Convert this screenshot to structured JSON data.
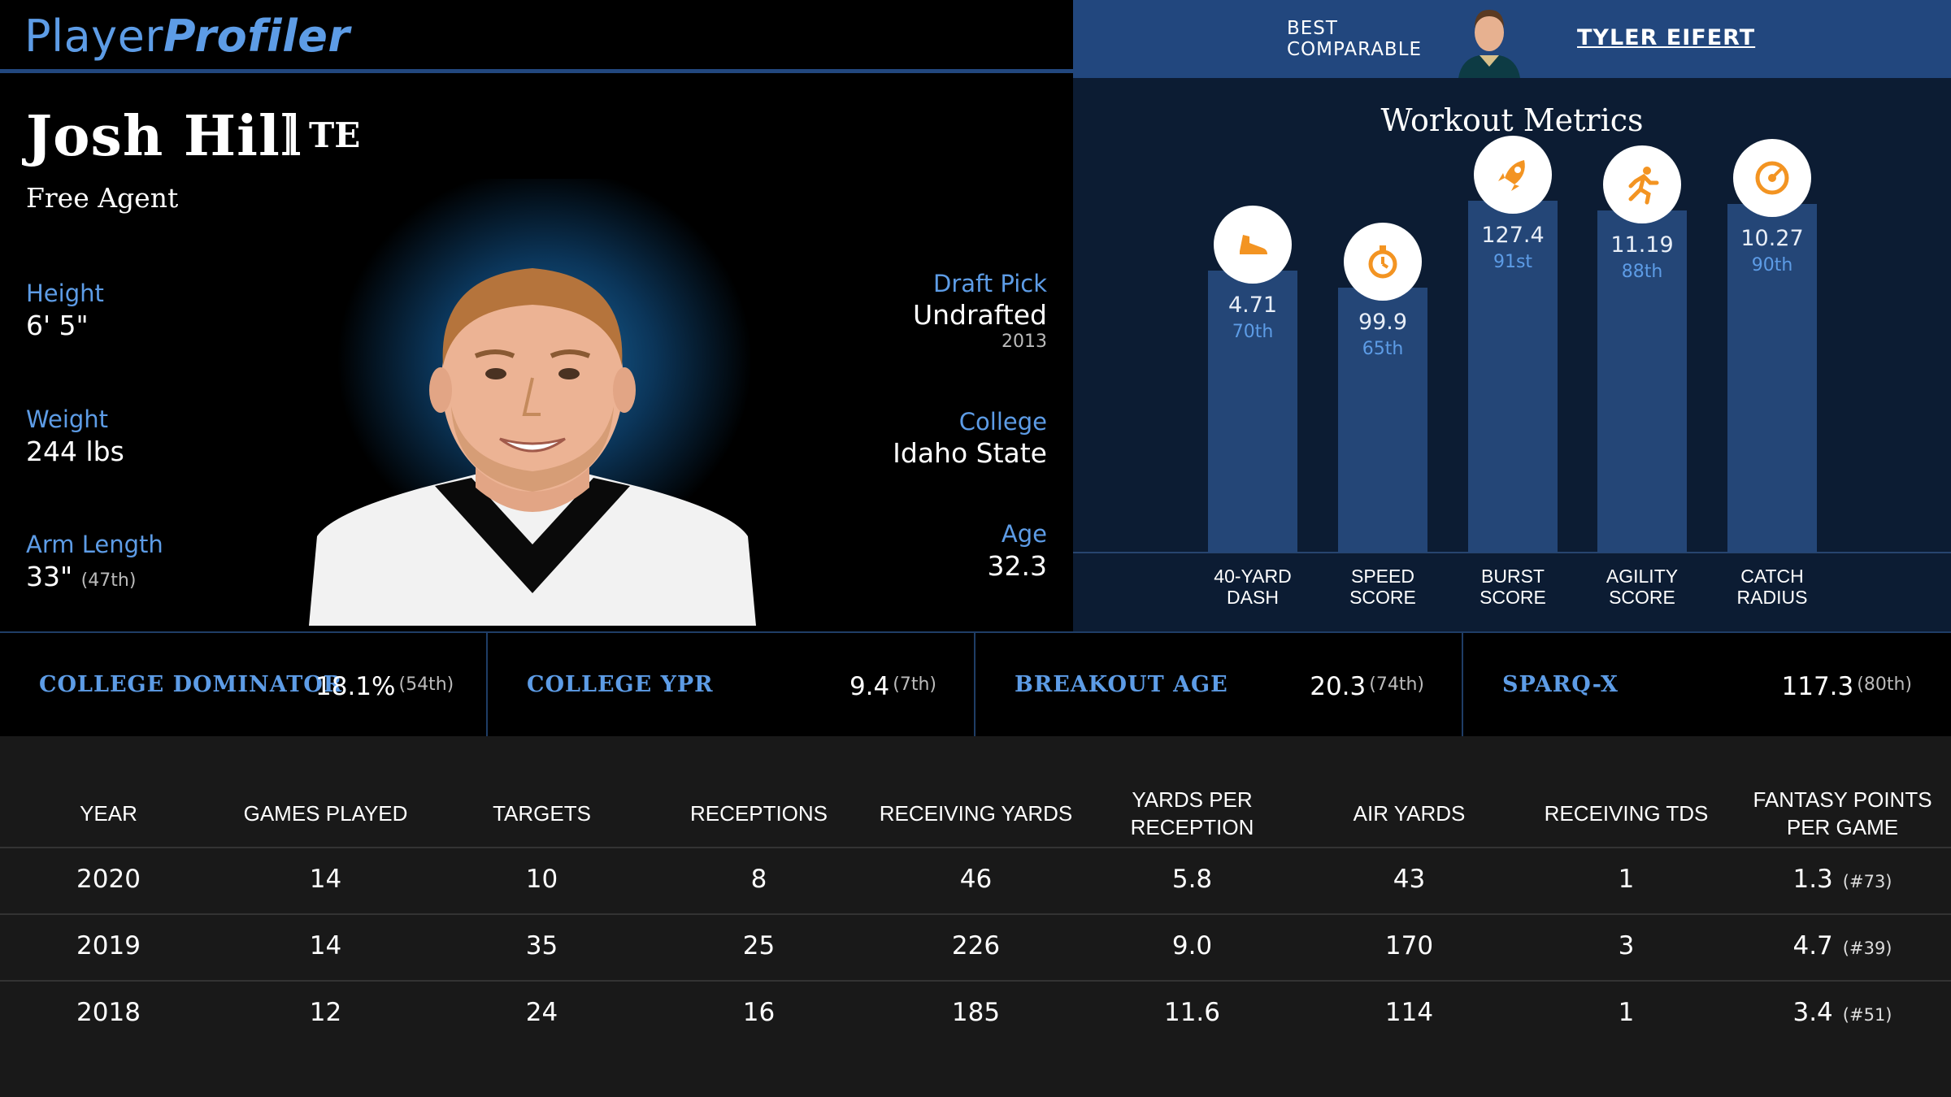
{
  "brand": {
    "logo_part1": "Player",
    "logo_part2": "Profiler",
    "accent": "#5d9ce6",
    "nav_blue": "#22477e"
  },
  "player": {
    "name": "Josh Hill",
    "position": "TE",
    "status": "Free Agent",
    "height_label": "Height",
    "height": "6' 5\"",
    "weight_label": "Weight",
    "weight": "244 lbs",
    "arm_label": "Arm Length",
    "arm": "33\"",
    "arm_rank": "(47th)",
    "draft_label": "Draft Pick",
    "draft": "Undrafted",
    "draft_year": "2013",
    "college_label": "College",
    "college": "Idaho State",
    "age_label": "Age",
    "age": "32.3"
  },
  "comparable": {
    "label_line1": "BEST",
    "label_line2": "COMPARABLE",
    "name": "TYLER EIFERT"
  },
  "workout": {
    "title": "Workout Metrics",
    "metrics": [
      {
        "icon": "shoe-icon",
        "value": "4.71",
        "pct": "70th",
        "label1": "40-YARD",
        "label2": "DASH",
        "percentile": 70
      },
      {
        "icon": "stopwatch-icon",
        "value": "99.9",
        "pct": "65th",
        "label1": "SPEED",
        "label2": "SCORE",
        "percentile": 65
      },
      {
        "icon": "rocket-icon",
        "value": "127.4",
        "pct": "91st",
        "label1": "BURST",
        "label2": "SCORE",
        "percentile": 91
      },
      {
        "icon": "runner-icon",
        "value": "11.19",
        "pct": "88th",
        "label1": "AGILITY",
        "label2": "SCORE",
        "percentile": 88
      },
      {
        "icon": "target-icon",
        "value": "10.27",
        "pct": "90th",
        "label1": "CATCH",
        "label2": "RADIUS",
        "percentile": 90
      }
    ]
  },
  "advanced": [
    {
      "label": "COLLEGE DOMINATOR",
      "value": "18.1%",
      "rank": "(54th)"
    },
    {
      "label": "COLLEGE YPR",
      "value": "9.4",
      "rank": "(7th)"
    },
    {
      "label": "BREAKOUT AGE",
      "value": "20.3",
      "rank": "(74th)"
    },
    {
      "label": "SPARQ-X",
      "value": "117.3",
      "rank": "(80th)"
    }
  ],
  "table": {
    "headers": [
      "YEAR",
      "GAMES PLAYED",
      "TARGETS",
      "RECEPTIONS",
      "RECEIVING YARDS",
      "YARDS PER RECEPTION",
      "AIR YARDS",
      "RECEIVING TDS",
      "FANTASY POINTS PER GAME"
    ],
    "rows": [
      {
        "cells": [
          "2020",
          "14",
          "10",
          "8",
          "46",
          "5.8",
          "43",
          "1",
          "1.3"
        ],
        "rank": "(#73)"
      },
      {
        "cells": [
          "2019",
          "14",
          "35",
          "25",
          "226",
          "9.0",
          "170",
          "3",
          "4.7"
        ],
        "rank": "(#39)"
      },
      {
        "cells": [
          "2018",
          "12",
          "24",
          "16",
          "185",
          "11.6",
          "114",
          "1",
          "3.4"
        ],
        "rank": "(#51)"
      }
    ]
  }
}
